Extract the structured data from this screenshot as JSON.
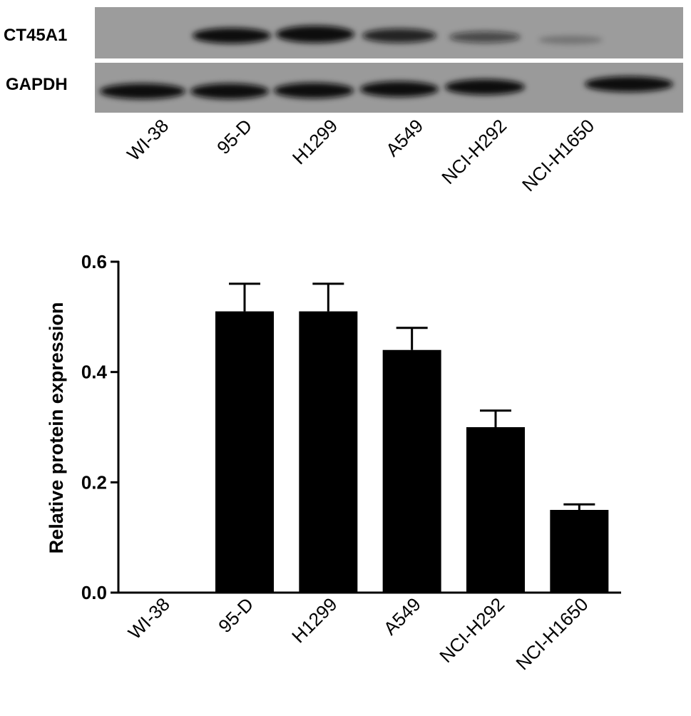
{
  "blot": {
    "rows": [
      "CT45A1",
      "GAPDH"
    ],
    "lanes": [
      "WI-38",
      "95-D",
      "H1299",
      "A549",
      "NCI-H292",
      "NCI-H1650"
    ]
  },
  "chart_data": {
    "type": "bar",
    "y_label": "Relative protein expression",
    "categories": [
      "WI-38",
      "95-D",
      "H1299",
      "A549",
      "NCI-H292",
      "NCI-H1650"
    ],
    "values": [
      0,
      0.51,
      0.51,
      0.44,
      0.3,
      0.15
    ],
    "errors": [
      0,
      0.05,
      0.05,
      0.04,
      0.03,
      0.01
    ],
    "color": "#000000",
    "ylim": [
      0,
      0.6
    ],
    "yticks": [
      {
        "value": 0,
        "label": "0.0"
      },
      0.2,
      0.4,
      0.6
    ]
  }
}
